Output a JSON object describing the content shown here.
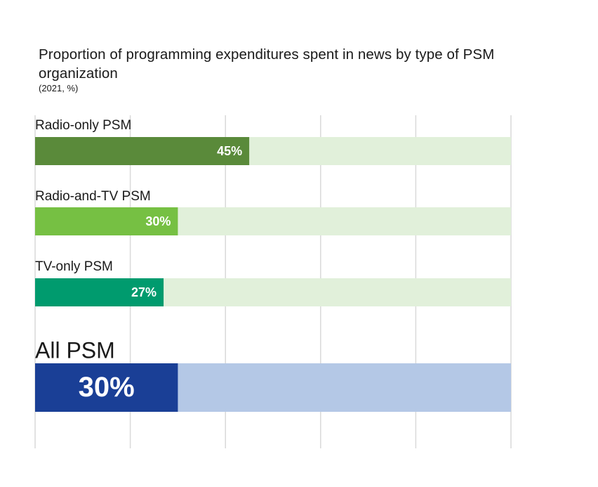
{
  "chart_data": {
    "type": "bar",
    "orientation": "horizontal",
    "title": "Proportion of programming expenditures spent in news by type of PSM organization",
    "subtitle": "(2021, %)",
    "categories": [
      "Radio-only PSM",
      "Radio-and-TV PSM",
      "TV-only PSM",
      "All PSM"
    ],
    "values": [
      45,
      30,
      27,
      30
    ],
    "value_labels": [
      "45%",
      "30%",
      "27%",
      "30%"
    ],
    "xlim": [
      0,
      100
    ],
    "grid": true,
    "gridline_count": 5,
    "colors": {
      "bars": [
        "#5a8a3a",
        "#76c043",
        "#009b6e",
        "#1a3f96"
      ],
      "tracks": [
        "#e1f0da",
        "#e1f0da",
        "#e1f0da",
        "#b4c8e6"
      ],
      "gridline": "#d9d9d9"
    }
  }
}
